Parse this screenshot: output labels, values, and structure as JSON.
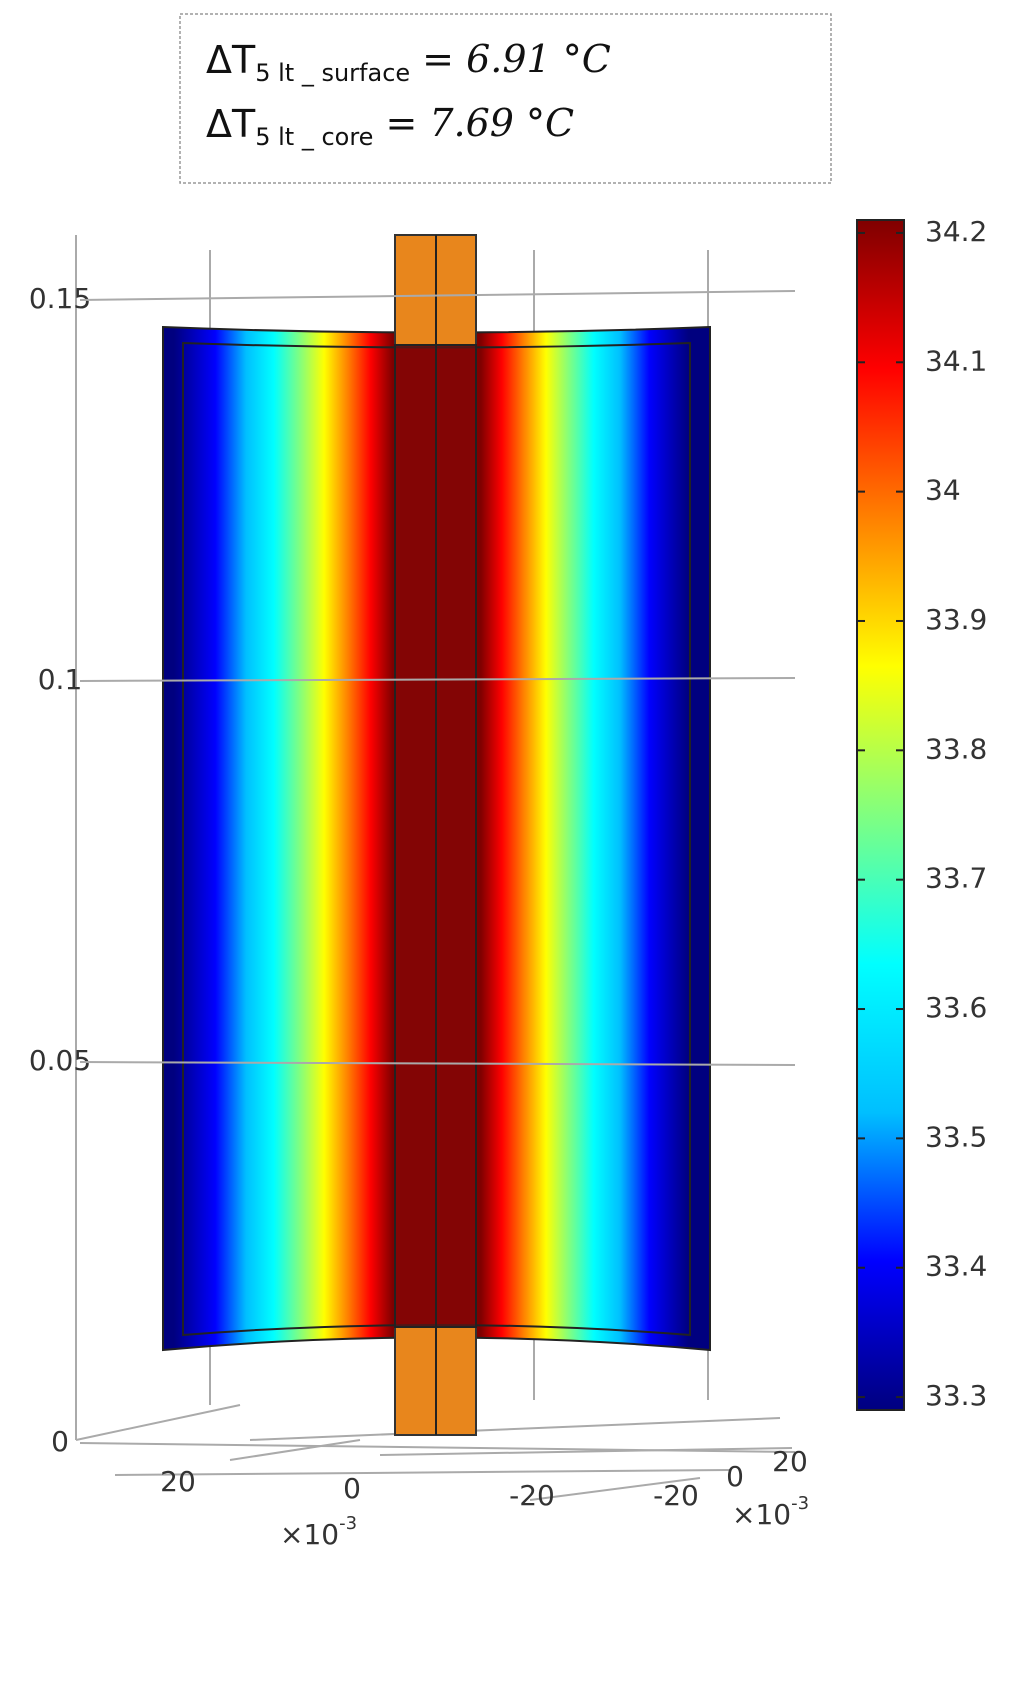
{
  "chart_data": {
    "type": "surface3d",
    "annotations": [
      {
        "symbol": "ΔT",
        "subscript": "5 lt _ surface",
        "text": "= 6.91 °C"
      },
      {
        "symbol": "ΔT",
        "subscript": "5 lt _ core",
        "text": "= 7.69 °C"
      }
    ],
    "zlim": [
      0,
      0.15
    ],
    "zticks": [
      0,
      0.05,
      0.1,
      0.15
    ],
    "xticks": [
      20,
      0,
      -20
    ],
    "yticks": [
      -20,
      0,
      20
    ],
    "x_multiplier": {
      "base": "×10",
      "exponent": "-3"
    },
    "y_multiplier": {
      "base": "×10",
      "exponent": "-3"
    },
    "colormap": [
      "#00007f",
      "#0000ff",
      "#00bfff",
      "#00ffff",
      "#80ff80",
      "#ffff00",
      "#ff8000",
      "#ff0000",
      "#7f0000"
    ],
    "clim": [
      33.29,
      34.21
    ],
    "cticks": [
      33.3,
      33.4,
      33.5,
      33.6,
      33.7,
      33.8,
      33.9,
      34,
      34.1,
      34.2
    ]
  }
}
